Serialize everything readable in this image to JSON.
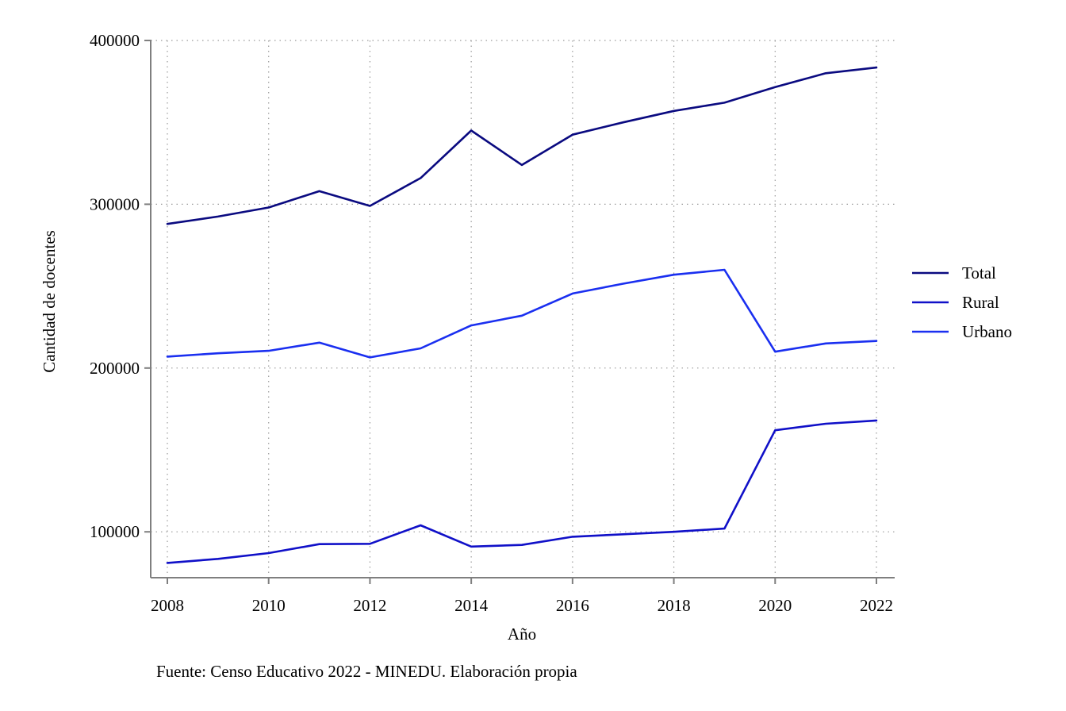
{
  "chart_data": {
    "type": "line",
    "title": "",
    "xlabel": "Año",
    "ylabel": "Cantidad de docentes",
    "note": "Fuente: Censo Educativo 2022 - MINEDU. Elaboración propia",
    "xlim": [
      2008,
      2022
    ],
    "ylim": [
      72000,
      400000
    ],
    "x_ticks": [
      2008,
      2010,
      2012,
      2014,
      2016,
      2018,
      2020,
      2022
    ],
    "y_ticks": [
      100000,
      200000,
      300000,
      400000
    ],
    "grid": true,
    "legend_position": "right",
    "x": [
      2008,
      2009,
      2010,
      2011,
      2012,
      2013,
      2014,
      2015,
      2016,
      2017,
      2018,
      2019,
      2020,
      2021,
      2022
    ],
    "series": [
      {
        "name": "Total",
        "color": "#0a0a80",
        "values": [
          288000,
          292500,
          298000,
          308000,
          299000,
          316000,
          345000,
          324000,
          342500,
          350000,
          357000,
          362000,
          371500,
          380000,
          383500
        ]
      },
      {
        "name": "Rural",
        "color": "#1010c8",
        "values": [
          81000,
          83500,
          87000,
          92500,
          92700,
          104000,
          91000,
          92000,
          97000,
          98500,
          100000,
          102000,
          162000,
          166000,
          168000
        ]
      },
      {
        "name": "Urbano",
        "color": "#1a2ff0",
        "values": [
          207000,
          209000,
          210500,
          215500,
          206500,
          212000,
          226000,
          232000,
          245500,
          251500,
          257000,
          260000,
          210000,
          215000,
          216500
        ]
      }
    ]
  }
}
